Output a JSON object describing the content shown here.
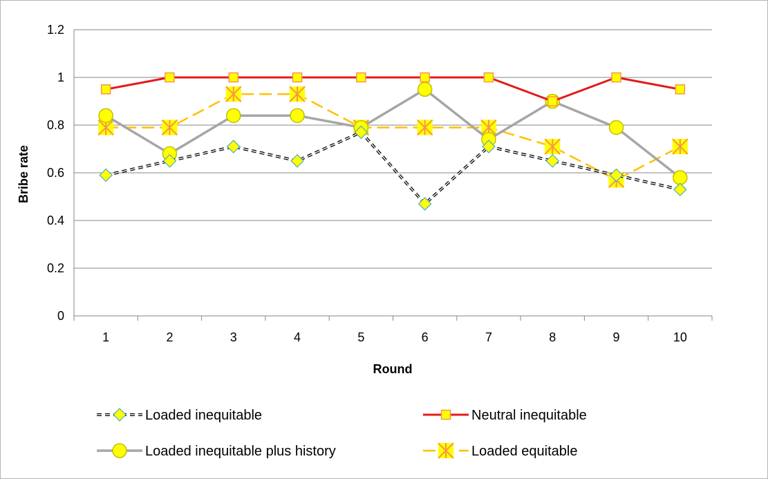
{
  "chart_data": {
    "type": "line",
    "xlabel": "Round",
    "ylabel": "Bribe rate",
    "categories": [
      "1",
      "2",
      "3",
      "4",
      "5",
      "6",
      "7",
      "8",
      "9",
      "10"
    ],
    "ylim": [
      0,
      1.2
    ],
    "yticks": [
      "0",
      "0.2",
      "0.4",
      "0.6",
      "0.8",
      "1",
      "1.2"
    ],
    "grid": "horizontal",
    "legend_position": "bottom",
    "series": [
      {
        "name": "Loaded inequitable",
        "values": [
          0.59,
          0.65,
          0.71,
          0.65,
          0.77,
          0.47,
          0.71,
          0.65,
          0.59,
          0.53
        ],
        "line_color": "#000000",
        "marker_fill": "#ffff00",
        "marker_stroke": "#4bacc6",
        "marker": "diamond",
        "line_style": "dashed-double"
      },
      {
        "name": "Neutral inequitable",
        "values": [
          0.95,
          1.0,
          1.0,
          1.0,
          1.0,
          1.0,
          1.0,
          0.9,
          1.0,
          0.95
        ],
        "line_color": "#e31a1a",
        "marker_fill": "#ffff00",
        "marker_stroke": "#f79646",
        "marker": "square",
        "line_style": "solid"
      },
      {
        "name": "Loaded inequitable plus history",
        "values": [
          0.84,
          0.68,
          0.84,
          0.84,
          0.79,
          0.95,
          0.74,
          0.9,
          0.79,
          0.58
        ],
        "line_color": "#a6a6a6",
        "marker_fill": "#ffff00",
        "marker_stroke": "#bfbf00",
        "marker": "circle",
        "line_style": "solid"
      },
      {
        "name": "Loaded equitable",
        "values": [
          0.79,
          0.79,
          0.93,
          0.93,
          0.79,
          0.79,
          0.79,
          0.71,
          0.57,
          0.71
        ],
        "line_color": "#ffc000",
        "marker_fill": "#ffff00",
        "marker_stroke": "#f79646",
        "marker": "star",
        "line_style": "dashed"
      }
    ]
  }
}
